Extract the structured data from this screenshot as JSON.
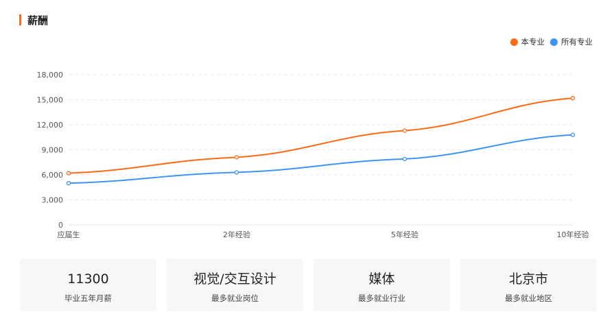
{
  "section": {
    "title": "薪酬"
  },
  "legend": {
    "items": [
      {
        "label": "本专业",
        "color": "#ff6a13"
      },
      {
        "label": "所有专业",
        "color": "#3d94f6"
      }
    ]
  },
  "chart_data": {
    "type": "line",
    "categories": [
      "应届生",
      "2年经验",
      "5年经验",
      "10年经验"
    ],
    "series": [
      {
        "name": "本专业",
        "color": "#ff6a13",
        "values": [
          6200,
          8100,
          11300,
          15200
        ]
      },
      {
        "name": "所有专业",
        "color": "#3d94f6",
        "values": [
          5000,
          6300,
          7900,
          10800
        ]
      }
    ],
    "ylim": [
      0,
      18000
    ],
    "yticks": [
      0,
      3000,
      6000,
      9000,
      12000,
      15000,
      18000
    ],
    "ytick_labels": [
      "0",
      "3,000",
      "6,000",
      "9,000",
      "12,000",
      "15,000",
      "18,000"
    ],
    "grid": true,
    "legend_position": "top-right"
  },
  "cards": [
    {
      "value": "11300",
      "label": "毕业五年月薪"
    },
    {
      "value": "视觉/交互设计",
      "label": "最多就业岗位"
    },
    {
      "value": "媒体",
      "label": "最多就业行业"
    },
    {
      "value": "北京市",
      "label": "最多就业地区"
    }
  ]
}
